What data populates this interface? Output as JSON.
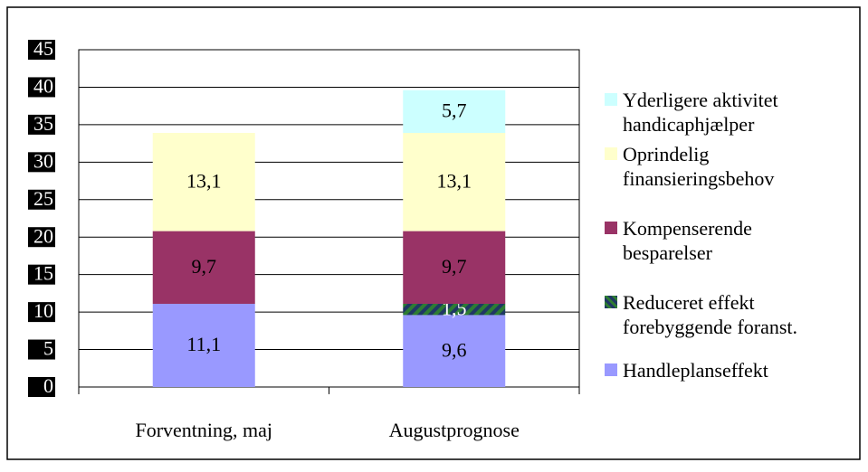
{
  "chart_data": {
    "type": "stacked_bar",
    "categories": [
      "Forventning, maj",
      "Augustprognose"
    ],
    "series": [
      {
        "name": "Handleplanseffekt",
        "color": "#9999ff",
        "values": [
          11.1,
          9.6
        ],
        "value_labels": [
          "11,1",
          "9,6"
        ]
      },
      {
        "name": "Reduceret effekt forebyggende foranst.",
        "color": "#1f3864",
        "values": [
          null,
          1.5
        ],
        "value_labels": [
          null,
          "1,5"
        ]
      },
      {
        "name": "Kompenserende besparelser",
        "color": "#993366",
        "values": [
          9.7,
          9.7
        ],
        "value_labels": [
          "9,7",
          "9,7"
        ]
      },
      {
        "name": "Oprindelig finansieringsbehov",
        "color": "#ffffcc",
        "values": [
          13.1,
          13.1
        ],
        "value_labels": [
          "13,1",
          "13,1"
        ]
      },
      {
        "name": "Yderligere aktivitet handicaphjælper",
        "color": "#ccffff",
        "values": [
          null,
          5.7
        ],
        "value_labels": [
          null,
          "5,7"
        ]
      }
    ],
    "ylim": [
      0,
      45
    ],
    "yticks": [
      0,
      5,
      10,
      15,
      20,
      25,
      30,
      35,
      40,
      45
    ],
    "grid": true,
    "legend": "right"
  }
}
